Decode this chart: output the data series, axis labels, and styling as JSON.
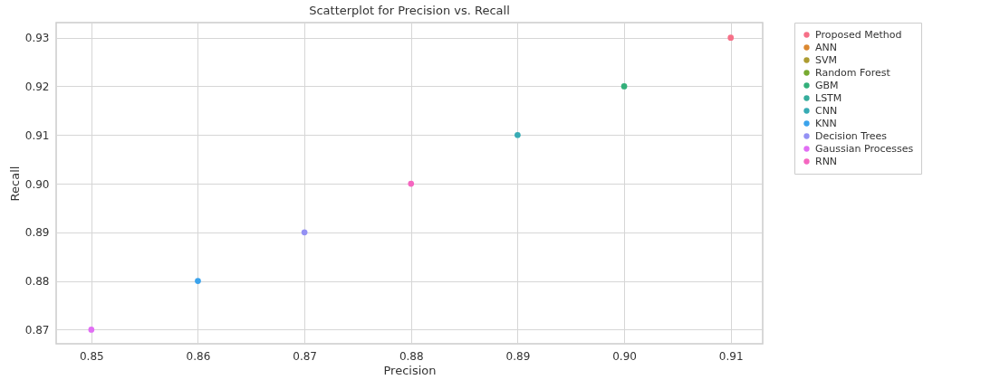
{
  "chart_data": {
    "type": "scatter",
    "title": "Scatterplot for Precision vs. Recall",
    "xlabel": "Precision",
    "ylabel": "Recall",
    "xlim": [
      0.8467,
      0.913
    ],
    "ylim": [
      0.8671,
      0.9331
    ],
    "xticks": [
      0.85,
      0.86,
      0.87,
      0.88,
      0.89,
      {
        "value": 0.9,
        "label": "0.90"
      },
      0.91
    ],
    "yticks": [
      0.87,
      0.88,
      0.89,
      {
        "value": 0.9,
        "label": "0.90"
      },
      0.91,
      0.92,
      0.93
    ],
    "grid": true,
    "legend": "top right",
    "series": [
      {
        "name": "Proposed Method",
        "color": "#f67088",
        "x": [
          0.91
        ],
        "values": [
          0.93
        ]
      },
      {
        "name": "ANN",
        "color": "#db8831",
        "x": [
          null
        ],
        "values": [
          null
        ]
      },
      {
        "name": "SVM",
        "color": "#ad9c31",
        "x": [
          null
        ],
        "values": [
          null
        ]
      },
      {
        "name": "Random Forest",
        "color": "#77aa31",
        "x": [
          null
        ],
        "values": [
          null
        ]
      },
      {
        "name": "GBM",
        "color": "#33b07a",
        "x": [
          0.9
        ],
        "values": [
          0.92
        ]
      },
      {
        "name": "LSTM",
        "color": "#35ad9c",
        "x": [
          null
        ],
        "values": [
          null
        ]
      },
      {
        "name": "CNN",
        "color": "#37abb4",
        "x": [
          0.89
        ],
        "values": [
          0.91
        ]
      },
      {
        "name": "KNN",
        "color": "#3ba3ec",
        "x": [
          0.86
        ],
        "values": [
          0.88
        ]
      },
      {
        "name": "Decision Trees",
        "color": "#9491f4",
        "x": [
          0.87
        ],
        "values": [
          0.89
        ]
      },
      {
        "name": "Gaussian Processes",
        "color": "#e16ef4",
        "x": [
          0.85
        ],
        "values": [
          0.87
        ]
      },
      {
        "name": "RNN",
        "color": "#f566c0",
        "x": [
          0.88
        ],
        "values": [
          0.9
        ]
      }
    ]
  }
}
